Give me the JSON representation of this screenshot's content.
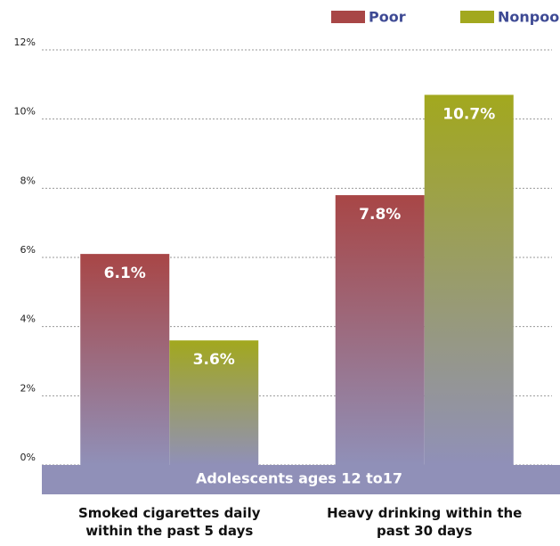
{
  "chart_data": {
    "type": "bar",
    "categories": [
      "Smoked cigarettes daily within the past 5 days",
      "Heavy drinking within the past 30 days"
    ],
    "annotation": "Adolescents ages 12 to17",
    "series": [
      {
        "name": "Poor",
        "color": "#a84646",
        "values": [
          6.1,
          7.8
        ],
        "value_labels": [
          "6.1%",
          "7.8%"
        ]
      },
      {
        "name": "Nonpoor",
        "color": "#a2a81e",
        "values": [
          3.6,
          10.7
        ],
        "value_labels": [
          "3.6%",
          "10.7%"
        ]
      }
    ],
    "ylim": [
      0,
      12
    ],
    "yticks": [
      {
        "value": 0,
        "label": "0%"
      },
      {
        "value": 2,
        "label": "2%"
      },
      {
        "value": 4,
        "label": "4%"
      },
      {
        "value": 6,
        "label": "6%"
      },
      {
        "value": 8,
        "label": "8%"
      },
      {
        "value": 10,
        "label": "10%"
      },
      {
        "value": 12,
        "label": "12%"
      }
    ],
    "grid": true,
    "legend": "top-right"
  }
}
